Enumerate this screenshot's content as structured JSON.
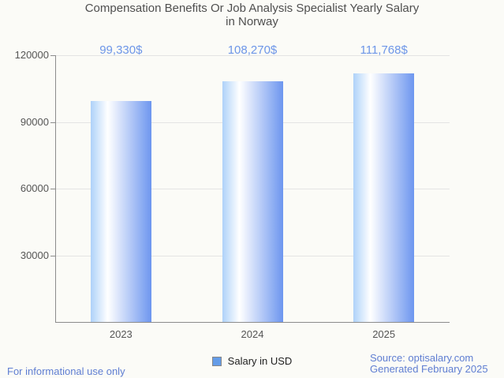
{
  "title": {
    "line1": "Compensation Benefits Or Job Analysis Specialist Yearly Salary",
    "line2": "in Norway"
  },
  "chart_data": {
    "type": "bar",
    "categories": [
      "2023",
      "2024",
      "2025"
    ],
    "values": [
      99330,
      108270,
      111768
    ],
    "value_labels": [
      "99,330$",
      "108,270$",
      "111,768$"
    ],
    "series": [
      {
        "name": "Salary in USD",
        "values": [
          99330,
          108270,
          111768
        ]
      }
    ],
    "title": "Compensation Benefits Or Job Analysis Specialist Yearly Salary in Norway",
    "xlabel": "",
    "ylabel": "",
    "ylim": [
      0,
      120000
    ],
    "yticks": [
      30000,
      60000,
      90000,
      120000
    ],
    "ytick_labels": [
      "30000",
      "60000",
      "90000",
      "120000"
    ],
    "grid": true,
    "legend_position": "bottom"
  },
  "legend": {
    "label": "Salary in USD"
  },
  "footer": {
    "left": "For informational use only",
    "source": "Source: optisalary.com",
    "generated": "Generated February 2025"
  },
  "colors": {
    "background": "#fbfbf7",
    "title_text": "#4f4f4f",
    "axis_line": "#8c8c8c",
    "axis_text": "#555555",
    "gridline": "#e4e4e4",
    "accent_blue": "#5f7ed2",
    "value_label_blue": "#6d96e8",
    "bar_gradient_left": "#aed2f9",
    "bar_gradient_highlight": "#ffffff",
    "bar_gradient_right": "#6d96ef",
    "legend_swatch": "#649ce8",
    "legend_swatch_border": "#888888",
    "legend_text": "#1f1f1f"
  }
}
